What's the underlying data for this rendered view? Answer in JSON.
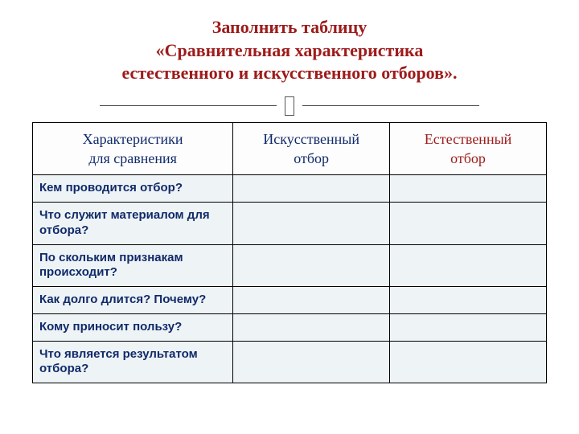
{
  "title": {
    "line1": "Заполнить таблицу",
    "line2": "«Сравнительная характеристика",
    "line3": "естественного и искусственного отборов».",
    "color": "#9e1b1b",
    "fontsize": 22
  },
  "divider": {
    "line_color": "#444444",
    "box_border": "#555555"
  },
  "table": {
    "type": "table",
    "border_color": "#000000",
    "header_bg": "#fdfdfd",
    "header_fontsize": 18,
    "row_bg": "#eef3f5",
    "row_fontsize": 15,
    "columns": [
      {
        "label_line1": "Характеристики",
        "label_line2": "для сравнения",
        "color": "#102a6a"
      },
      {
        "label_line1": "Искусственный",
        "label_line2": "отбор",
        "color": "#102a6a"
      },
      {
        "label_line1": "Естественный",
        "label_line2": "отбор",
        "color": "#9e1b1b"
      }
    ],
    "rows": [
      {
        "label": "Кем проводится отбор?",
        "color": "#102a6a",
        "c1": "",
        "c2": ""
      },
      {
        "label": "Что служит материалом для отбора?",
        "color": "#102a6a",
        "c1": "",
        "c2": ""
      },
      {
        "label": "По скольким признакам происходит?",
        "color": "#102a6a",
        "c1": "",
        "c2": ""
      },
      {
        "label": "Как долго длится? Почему?",
        "color": "#102a6a",
        "c1": "",
        "c2": ""
      },
      {
        "label": "Кому приносит пользу?",
        "color": "#102a6a",
        "c1": "",
        "c2": ""
      },
      {
        "label": "Что является результатом отбора?",
        "color": "#102a6a",
        "c1": "",
        "c2": ""
      }
    ]
  }
}
